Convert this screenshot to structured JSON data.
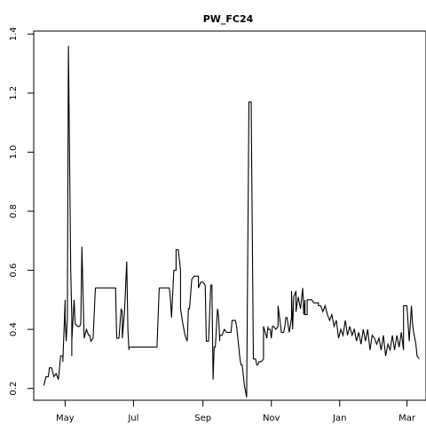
{
  "chart_data": {
    "type": "line",
    "title": "PW_FC24",
    "xlabel": "",
    "ylabel": "",
    "ylim": [
      0.16,
      1.41
    ],
    "xlim": [
      "2015-04-03",
      "2016-03-18"
    ],
    "grid": false,
    "legend": "none",
    "x_ticks": [
      {
        "label": "May",
        "date": "2015-05-01"
      },
      {
        "label": "Jul",
        "date": "2015-07-01"
      },
      {
        "label": "Sep",
        "date": "2015-09-01"
      },
      {
        "label": "Nov",
        "date": "2015-11-01"
      },
      {
        "label": "Jan",
        "date": "2016-01-01"
      },
      {
        "label": "Mar",
        "date": "2016-03-01"
      }
    ],
    "y_ticks": [
      {
        "label": "0.2",
        "value": 0.2
      },
      {
        "label": "0.4",
        "value": 0.4
      },
      {
        "label": "0.6",
        "value": 0.6
      },
      {
        "label": "0.8",
        "value": 0.8
      },
      {
        "label": "1.0",
        "value": 1.0
      },
      {
        "label": "1.2",
        "value": 1.2
      },
      {
        "label": "1.4",
        "value": 1.4
      }
    ],
    "line_color": "#000000",
    "series": [
      {
        "x": [
          "2015-04-12",
          "2015-04-14",
          "2015-04-16",
          "2015-04-17",
          "2015-04-19",
          "2015-04-21",
          "2015-04-23",
          "2015-04-25",
          "2015-04-27",
          "2015-04-29",
          "2015-04-29",
          "2015-05-01",
          "2015-05-01",
          "2015-05-02",
          "2015-05-03",
          "2015-05-04",
          "2015-05-05",
          "2015-05-06",
          "2015-05-07",
          "2015-05-07",
          "2015-05-07",
          "2015-05-09",
          "2015-05-10",
          "2015-05-12",
          "2015-05-12",
          "2015-05-14",
          "2015-05-15",
          "2015-05-16",
          "2015-05-18",
          "2015-05-20",
          "2015-05-21",
          "2015-05-21",
          "2015-05-22",
          "2015-05-23",
          "2015-05-24",
          "2015-05-26",
          "2015-05-28",
          "2015-05-30",
          "2015-06-01",
          "2015-06-01",
          "2015-06-15",
          "2015-06-16",
          "2015-06-17",
          "2015-06-18",
          "2015-06-20",
          "2015-06-21",
          "2015-06-21",
          "2015-06-23",
          "2015-06-25",
          "2015-06-26",
          "2015-06-27",
          "2015-06-27",
          "2015-06-28",
          "2015-06-29",
          "2015-07-01",
          "2015-07-01",
          "2015-07-02",
          "2015-07-03",
          "2015-07-04",
          "2015-07-05",
          "2015-07-07",
          "2015-07-07",
          "2015-07-09",
          "2015-07-10",
          "2015-07-22",
          "2015-07-24",
          "2015-07-24",
          "2015-08-02",
          "2015-08-03",
          "2015-08-04",
          "2015-08-06",
          "2015-08-08",
          "2015-08-08",
          "2015-08-10",
          "2015-08-12",
          "2015-08-12",
          "2015-08-14",
          "2015-08-16",
          "2015-08-18",
          "2015-08-18",
          "2015-08-19",
          "2015-08-20",
          "2015-08-22",
          "2015-08-22",
          "2015-08-24",
          "2015-08-26",
          "2015-08-28",
          "2015-08-28",
          "2015-08-30",
          "2015-09-01",
          "2015-09-03",
          "2015-09-04",
          "2015-09-06",
          "2015-09-08",
          "2015-09-09",
          "2015-09-10",
          "2015-09-11",
          "2015-09-12",
          "2015-09-14",
          "2015-09-15",
          "2015-09-16",
          "2015-09-16",
          "2015-09-18",
          "2015-09-20",
          "2015-09-22",
          "2015-09-24",
          "2015-09-26",
          "2015-09-27",
          "2015-09-29",
          "2015-09-30",
          "2015-10-01",
          "2015-10-04",
          "2015-10-05",
          "2015-10-06",
          "2015-10-08",
          "2015-10-10",
          "2015-10-12",
          "2015-10-14",
          "2015-10-16",
          "2015-10-18",
          "2015-10-19",
          "2015-10-20",
          "2015-10-21",
          "2015-10-21",
          "2015-10-23",
          "2015-10-23",
          "2015-10-25",
          "2015-10-25",
          "2015-10-28",
          "2015-10-29",
          "2015-10-29",
          "2015-10-31",
          "2015-11-01",
          "2015-11-02",
          "2015-11-03",
          "2015-11-05",
          "2015-11-07",
          "2015-11-07",
          "2015-11-10",
          "2015-11-12",
          "2015-11-12",
          "2015-11-13",
          "2015-11-14",
          "2015-11-15",
          "2015-11-17",
          "2015-11-19",
          "2015-11-19",
          "2015-11-20",
          "2015-11-21",
          "2015-11-23",
          "2015-11-23",
          "2015-11-25",
          "2015-11-25",
          "2015-11-27",
          "2015-11-29",
          "2015-11-30",
          "2015-12-01",
          "2015-12-01",
          "2015-12-03",
          "2015-12-03",
          "2015-12-05",
          "2015-12-05",
          "2015-12-07",
          "2015-12-09",
          "2015-12-11",
          "2015-12-13",
          "2015-12-13",
          "2015-12-15",
          "2015-12-17",
          "2015-12-19",
          "2015-12-21",
          "2015-12-23",
          "2015-12-25",
          "2015-12-27",
          "2015-12-29",
          "2015-12-31",
          "2016-01-02",
          "2016-01-04",
          "2016-01-06",
          "2016-01-08",
          "2016-01-10",
          "2016-01-12",
          "2016-01-14",
          "2016-01-16",
          "2016-01-18",
          "2016-01-20",
          "2016-01-22",
          "2016-01-24",
          "2016-01-26",
          "2016-01-28",
          "2016-01-30",
          "2016-02-01",
          "2016-02-03",
          "2016-02-05",
          "2016-02-07",
          "2016-02-09",
          "2016-02-11",
          "2016-02-13",
          "2016-02-15",
          "2016-02-17",
          "2016-02-19",
          "2016-02-21",
          "2016-02-23",
          "2016-02-25",
          "2016-02-27",
          "2016-02-27",
          "2016-03-01",
          "2016-03-03",
          "2016-03-03",
          "2016-03-05",
          "2016-03-06",
          "2016-03-07",
          "2016-03-09",
          "2016-03-10",
          "2016-03-12"
        ],
        "y": [
          0.21,
          0.24,
          0.24,
          0.27,
          0.27,
          0.24,
          0.25,
          0.23,
          0.31,
          0.31,
          0.29,
          0.5,
          0.43,
          0.36,
          0.44,
          1.36,
          0.98,
          0.6,
          0.44,
          0.31,
          0.36,
          0.5,
          0.42,
          0.41,
          0.41,
          0.41,
          0.42,
          0.68,
          0.37,
          0.4,
          0.39,
          0.39,
          0.38,
          0.38,
          0.36,
          0.37,
          0.54,
          0.54,
          0.54,
          0.54,
          0.54,
          0.37,
          0.37,
          0.37,
          0.47,
          0.46,
          0.37,
          0.46,
          0.63,
          0.4,
          0.33,
          0.34,
          0.34,
          0.34,
          0.34,
          0.34,
          0.34,
          0.34,
          0.34,
          0.34,
          0.34,
          0.34,
          0.34,
          0.34,
          0.34,
          0.54,
          0.54,
          0.54,
          0.5,
          0.44,
          0.6,
          0.6,
          0.67,
          0.67,
          0.6,
          0.47,
          0.42,
          0.38,
          0.36,
          0.36,
          0.47,
          0.47,
          0.57,
          0.57,
          0.58,
          0.58,
          0.58,
          0.54,
          0.56,
          0.56,
          0.55,
          0.36,
          0.36,
          0.55,
          0.55,
          0.23,
          0.34,
          0.34,
          0.47,
          0.44,
          0.36,
          0.38,
          0.38,
          0.4,
          0.39,
          0.39,
          0.39,
          0.43,
          0.43,
          0.43,
          0.41,
          0.3,
          0.28,
          0.28,
          0.21,
          0.17,
          1.17,
          1.17,
          0.3,
          0.3,
          0.28,
          0.28,
          0.29,
          0.29,
          0.29,
          0.29,
          0.3,
          0.41,
          0.37,
          0.41,
          0.4,
          0.4,
          0.37,
          0.41,
          0.41,
          0.4,
          0.41,
          0.48,
          0.39,
          0.39,
          0.39,
          0.41,
          0.44,
          0.44,
          0.39,
          0.44,
          0.53,
          0.4,
          0.51,
          0.53,
          0.46,
          0.51,
          0.51,
          0.47,
          0.54,
          0.45,
          0.5,
          0.45,
          0.45,
          0.5,
          0.5,
          0.5,
          0.5,
          0.49,
          0.49,
          0.49,
          0.48,
          0.48,
          0.46,
          0.48,
          0.45,
          0.43,
          0.45,
          0.41,
          0.43,
          0.37,
          0.4,
          0.38,
          0.43,
          0.38,
          0.41,
          0.38,
          0.4,
          0.36,
          0.39,
          0.35,
          0.4,
          0.36,
          0.4,
          0.33,
          0.38,
          0.37,
          0.35,
          0.37,
          0.33,
          0.38,
          0.31,
          0.35,
          0.33,
          0.38,
          0.33,
          0.38,
          0.34,
          0.39,
          0.33,
          0.48,
          0.48,
          0.36,
          0.36,
          0.48,
          0.42,
          0.39,
          0.35,
          0.31,
          0.3
        ]
      }
    ]
  }
}
